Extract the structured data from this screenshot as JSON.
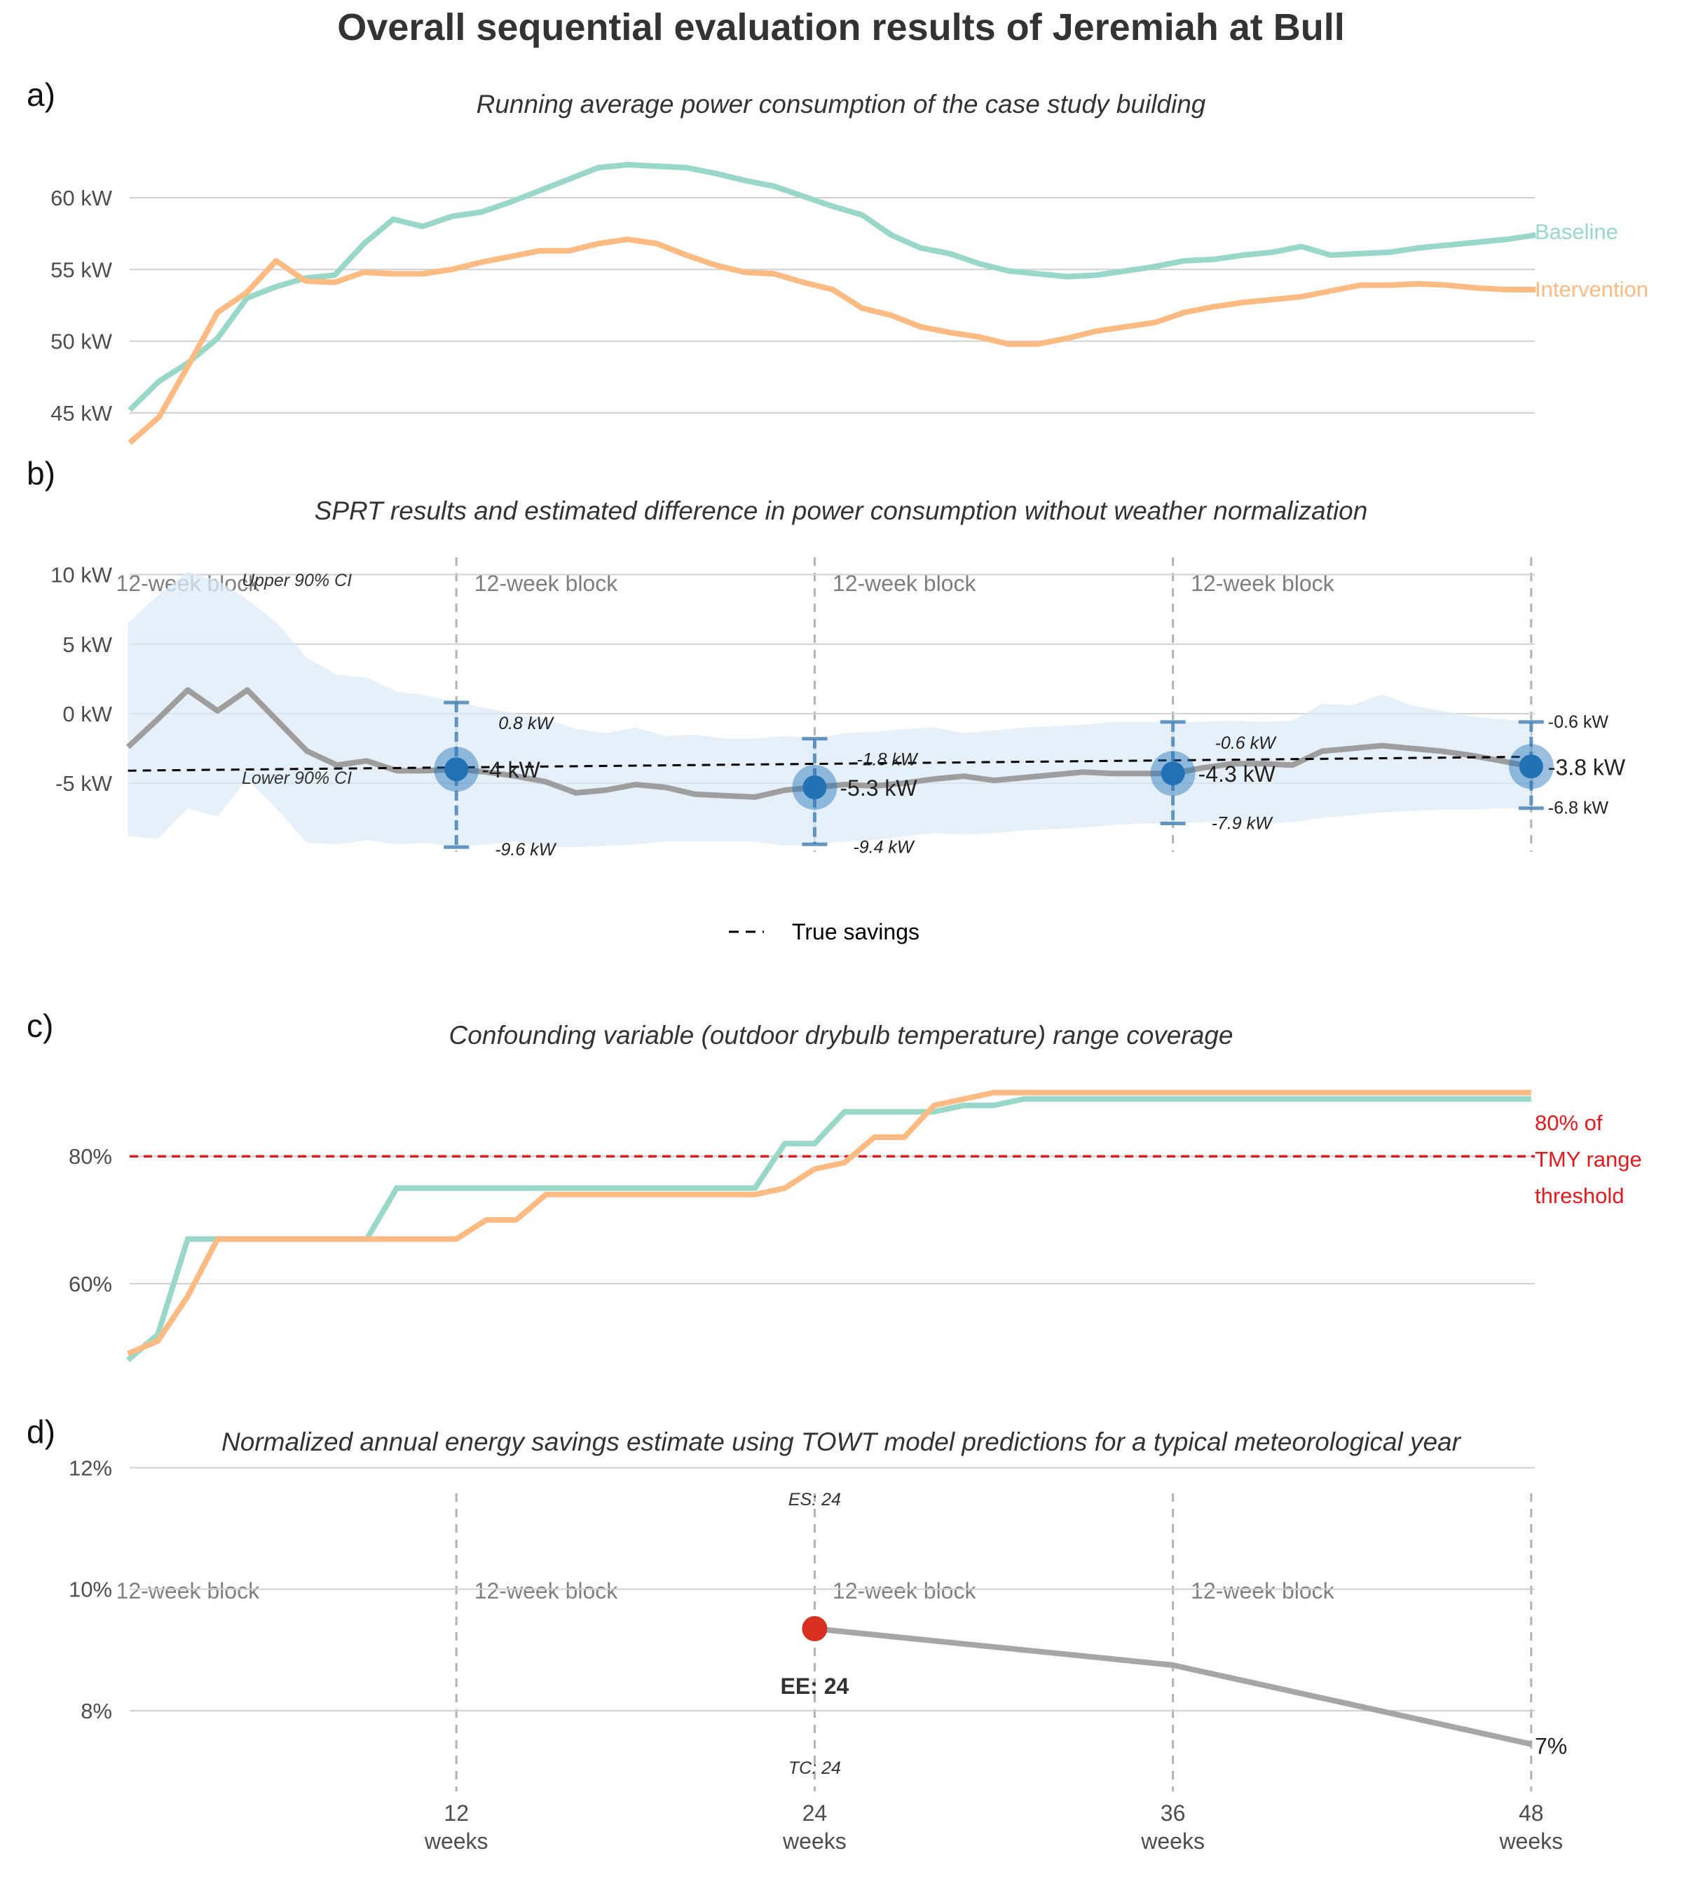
{
  "title": "Overall sequential evaluation results of Jeremiah at Bull",
  "panels": {
    "a": {
      "letter": "a)",
      "subtitle": "Running average power consumption of the case study building"
    },
    "b": {
      "letter": "b)",
      "subtitle": "SPRT results and estimated difference in power consumption without weather normalization"
    },
    "c": {
      "letter": "c)",
      "subtitle": "Confounding variable (outdoor drybulb temperature) range coverage"
    },
    "d": {
      "letter": "d)",
      "subtitle": "Normalized annual energy savings estimate using TOWT model predictions for a typical meteorological year"
    }
  },
  "colors": {
    "baseline": "#99d8c9",
    "intervention": "#fdbb84",
    "difference": "#9e9e9e",
    "ci_band": "#deebf7",
    "estimate": "#2171b5",
    "threshold": "#e41a1c",
    "savings_point": "#d7301f",
    "savings_line": "#a6a6a6",
    "grid": "#d0d0d0",
    "axis_text": "#4d4d4d"
  },
  "chart_data": [
    {
      "panel": "a",
      "type": "line",
      "ylim": [
        42.5,
        64.5
      ],
      "yticks": [
        45,
        50,
        55,
        60
      ],
      "ytick_labels": [
        "45 kW",
        "50 kW",
        "55 kW",
        "60 kW"
      ],
      "xlim": [
        0,
        48
      ],
      "series": [
        {
          "name": "Baseline",
          "x": [
            0,
            1,
            2,
            3,
            4,
            5,
            6,
            7,
            8,
            9,
            10,
            11,
            12,
            13,
            14,
            15,
            16,
            17,
            18,
            19,
            20,
            21,
            22,
            23,
            24,
            25,
            26,
            27,
            28,
            29,
            30,
            31,
            32,
            33,
            34,
            35,
            36,
            37,
            38,
            39,
            40,
            41,
            42,
            43,
            44,
            45,
            46,
            47,
            48
          ],
          "values": [
            45.2,
            47.2,
            48.5,
            50.2,
            53.0,
            53.8,
            54.4,
            54.6,
            56.8,
            58.5,
            58.0,
            58.7,
            59.0,
            59.7,
            60.5,
            61.3,
            62.1,
            62.3,
            62.2,
            62.1,
            61.7,
            61.2,
            60.8,
            60.1,
            59.4,
            58.8,
            57.4,
            56.5,
            56.1,
            55.4,
            54.9,
            54.7,
            54.5,
            54.6,
            54.9,
            55.2,
            55.6,
            55.7,
            56.0,
            56.2,
            56.6,
            56.0,
            56.1,
            56.2,
            56.5,
            56.7,
            56.9,
            57.1,
            57.4
          ]
        },
        {
          "name": "Intervention",
          "x": [
            0,
            1,
            2,
            3,
            4,
            5,
            6,
            7,
            8,
            9,
            10,
            11,
            12,
            13,
            14,
            15,
            16,
            17,
            18,
            19,
            20,
            21,
            22,
            23,
            24,
            25,
            26,
            27,
            28,
            29,
            30,
            31,
            32,
            33,
            34,
            35,
            36,
            37,
            38,
            39,
            40,
            41,
            42,
            43,
            44,
            45,
            46,
            47,
            48
          ],
          "values": [
            42.9,
            44.7,
            48.3,
            52.0,
            53.4,
            55.6,
            54.2,
            54.1,
            54.8,
            54.7,
            54.7,
            55.0,
            55.5,
            55.9,
            56.3,
            56.3,
            56.8,
            57.1,
            56.8,
            56.0,
            55.3,
            54.8,
            54.7,
            54.1,
            53.6,
            52.3,
            51.8,
            51.0,
            50.6,
            50.3,
            49.8,
            49.8,
            50.2,
            50.7,
            51.0,
            51.3,
            52.0,
            52.4,
            52.7,
            52.9,
            53.1,
            53.5,
            53.9,
            53.9,
            54.0,
            53.9,
            53.7,
            53.6,
            53.6
          ]
        }
      ]
    },
    {
      "panel": "b",
      "type": "line",
      "ylim": [
        -11,
        12
      ],
      "yticks": [
        -5,
        0,
        5,
        10
      ],
      "ytick_labels": [
        "-5 kW",
        "0 kW",
        "5 kW",
        "10 kW"
      ],
      "xlim": [
        0,
        48
      ],
      "block_label": "12-week block",
      "block_centers": [
        3,
        15,
        27,
        39
      ],
      "block_boundaries": [
        12,
        24,
        36,
        48
      ],
      "ci_x": [
        1,
        2,
        3,
        4,
        5,
        6,
        7,
        8,
        9,
        10,
        11,
        12,
        13,
        14,
        15,
        16,
        17,
        18,
        19,
        20,
        21,
        22,
        23,
        24,
        25,
        26,
        27,
        28,
        29,
        30,
        31,
        32,
        33,
        34,
        35,
        36,
        37,
        38,
        39,
        40,
        41,
        42,
        43,
        44,
        45,
        46,
        47,
        48
      ],
      "ci_upper": [
        6.5,
        8.5,
        10.2,
        9.6,
        8.2,
        6.5,
        4.0,
        2.8,
        2.6,
        1.6,
        1.3,
        0.8,
        0.4,
        0.0,
        -0.4,
        -1.1,
        -1.4,
        -1.0,
        -1.6,
        -1.5,
        -1.8,
        -1.8,
        -1.6,
        -1.8,
        -1.4,
        -1.3,
        -1.1,
        -1.0,
        -1.4,
        -1.2,
        -1.0,
        -0.9,
        -0.8,
        -0.6,
        -0.6,
        -0.6,
        -0.6,
        -0.5,
        -0.6,
        -0.5,
        0.7,
        0.6,
        1.4,
        0.6,
        0.2,
        -0.2,
        -0.4,
        -0.6
      ],
      "ci_lower": [
        -8.8,
        -9.0,
        -6.8,
        -7.4,
        -4.7,
        -6.9,
        -9.3,
        -9.4,
        -9.1,
        -9.4,
        -9.3,
        -9.6,
        -9.4,
        -9.2,
        -9.6,
        -9.6,
        -9.5,
        -9.4,
        -9.2,
        -9.2,
        -9.2,
        -9.2,
        -9.5,
        -9.4,
        -9.2,
        -9.1,
        -8.8,
        -8.6,
        -8.7,
        -8.6,
        -8.4,
        -8.3,
        -8.2,
        -8.0,
        -7.9,
        -7.9,
        -7.8,
        -7.7,
        -7.9,
        -7.8,
        -7.5,
        -7.3,
        -7.1,
        -7.0,
        -6.9,
        -6.9,
        -6.8,
        -6.8
      ],
      "series": [
        {
          "name": "",
          "x": [
            1,
            2,
            3,
            4,
            5,
            6,
            7,
            8,
            9,
            10,
            11,
            12,
            13,
            14,
            15,
            16,
            17,
            18,
            19,
            20,
            21,
            22,
            23,
            24,
            25,
            26,
            27,
            28,
            29,
            30,
            31,
            32,
            33,
            34,
            35,
            36,
            37,
            38,
            39,
            40,
            41,
            42,
            43,
            44,
            45,
            46,
            47,
            48
          ],
          "values": [
            -2.4,
            -0.4,
            1.7,
            0.2,
            1.7,
            -0.5,
            -2.7,
            -3.7,
            -3.4,
            -4.1,
            -4.1,
            -4.0,
            -4.2,
            -4.5,
            -4.9,
            -5.7,
            -5.5,
            -5.1,
            -5.3,
            -5.8,
            -5.9,
            -6.0,
            -5.5,
            -5.3,
            -5.1,
            -5.2,
            -5.0,
            -4.7,
            -4.5,
            -4.8,
            -4.6,
            -4.4,
            -4.2,
            -4.3,
            -4.3,
            -4.3,
            -3.9,
            -3.6,
            -3.6,
            -3.7,
            -2.7,
            -2.5,
            -2.3,
            -2.5,
            -2.7,
            -3.0,
            -3.4,
            -3.8
          ]
        },
        {
          "name": "True savings",
          "x": [
            1,
            48
          ],
          "values": [
            -4.1,
            -3.1
          ]
        }
      ],
      "estimates": [
        {
          "x": 12,
          "value": -4.0,
          "upper": 0.8,
          "lower": -9.6,
          "label": "-4 kW",
          "upper_label": "0.8 kW",
          "lower_label": "-9.6 kW"
        },
        {
          "x": 24,
          "value": -5.3,
          "upper": -1.8,
          "lower": -9.4,
          "label": "-5.3 kW",
          "upper_label": "-1.8 kW",
          "lower_label": "-9.4 kW"
        },
        {
          "x": 36,
          "value": -4.3,
          "upper": -0.6,
          "lower": -7.9,
          "label": "-4.3 kW",
          "upper_label": "-0.6 kW",
          "lower_label": "-7.9 kW"
        },
        {
          "x": 48,
          "value": -3.8,
          "upper": -0.6,
          "lower": -6.8,
          "label": "-3.8 kW",
          "upper_label": "-0.6 kW",
          "lower_label": "-6.8 kW"
        }
      ],
      "band_labels": {
        "upper": "Upper 90% CI",
        "lower": "Lower 90% CI"
      },
      "legend": {
        "label": "True savings",
        "position": "bottom"
      }
    },
    {
      "panel": "c",
      "type": "line",
      "ylim": [
        46,
        95
      ],
      "yticks": [
        60,
        80
      ],
      "ytick_labels": [
        "60%",
        "80%"
      ],
      "xlim": [
        0,
        48
      ],
      "threshold": {
        "value": 80,
        "label_lines": [
          "80% of",
          "TMY range",
          "threshold"
        ]
      },
      "series": [
        {
          "name": "Baseline",
          "x": [
            1,
            2,
            3,
            4,
            5,
            6,
            7,
            8,
            9,
            10,
            11,
            12,
            13,
            14,
            15,
            16,
            17,
            18,
            19,
            20,
            21,
            22,
            23,
            24,
            25,
            26,
            27,
            28,
            29,
            30,
            31,
            32,
            33,
            34,
            35,
            36,
            37,
            38,
            39,
            40,
            41,
            42,
            43,
            44,
            45,
            46,
            47,
            48
          ],
          "values": [
            48,
            52,
            67,
            67,
            67,
            67,
            67,
            67,
            67,
            75,
            75,
            75,
            75,
            75,
            75,
            75,
            75,
            75,
            75,
            75,
            75,
            75,
            82,
            82,
            87,
            87,
            87,
            87,
            88,
            88,
            89,
            89,
            89,
            89,
            89,
            89,
            89,
            89,
            89,
            89,
            89,
            89,
            89,
            89,
            89,
            89,
            89,
            89
          ]
        },
        {
          "name": "Intervention",
          "x": [
            1,
            2,
            3,
            4,
            5,
            6,
            7,
            8,
            9,
            10,
            11,
            12,
            13,
            14,
            15,
            16,
            17,
            18,
            19,
            20,
            21,
            22,
            23,
            24,
            25,
            26,
            27,
            28,
            29,
            30,
            31,
            32,
            33,
            34,
            35,
            36,
            37,
            38,
            39,
            40,
            41,
            42,
            43,
            44,
            45,
            46,
            47,
            48
          ],
          "values": [
            49,
            51,
            58,
            67,
            67,
            67,
            67,
            67,
            67,
            67,
            67,
            67,
            70,
            70,
            74,
            74,
            74,
            74,
            74,
            74,
            74,
            74,
            75,
            78,
            79,
            83,
            83,
            88,
            89,
            90,
            90,
            90,
            90,
            90,
            90,
            90,
            90,
            90,
            90,
            90,
            90,
            90,
            90,
            90,
            90,
            90,
            90,
            90
          ]
        }
      ]
    },
    {
      "panel": "d",
      "type": "line",
      "ylim": [
        6.5,
        12.5
      ],
      "yticks": [
        8,
        10,
        12
      ],
      "ytick_labels": [
        "8%",
        "10%",
        "12%"
      ],
      "xlim": [
        0,
        48
      ],
      "xticks": [
        12,
        24,
        36,
        48
      ],
      "xtick_labels": [
        "12",
        "24",
        "36",
        "48"
      ],
      "xtick_unit": "weeks",
      "block_label": "12-week block",
      "block_centers": [
        3,
        15,
        27,
        39
      ],
      "block_boundaries": [
        12,
        24,
        36,
        48
      ],
      "series": [
        {
          "name": "",
          "x": [
            24,
            36,
            48
          ],
          "values": [
            9.35,
            8.75,
            7.45
          ]
        }
      ],
      "point": {
        "x": 24,
        "value": 9.35
      },
      "end_label": "7%",
      "annotations": {
        "es": "ES: 24",
        "ee": "EE: 24",
        "tc": "TC: 24"
      }
    }
  ]
}
